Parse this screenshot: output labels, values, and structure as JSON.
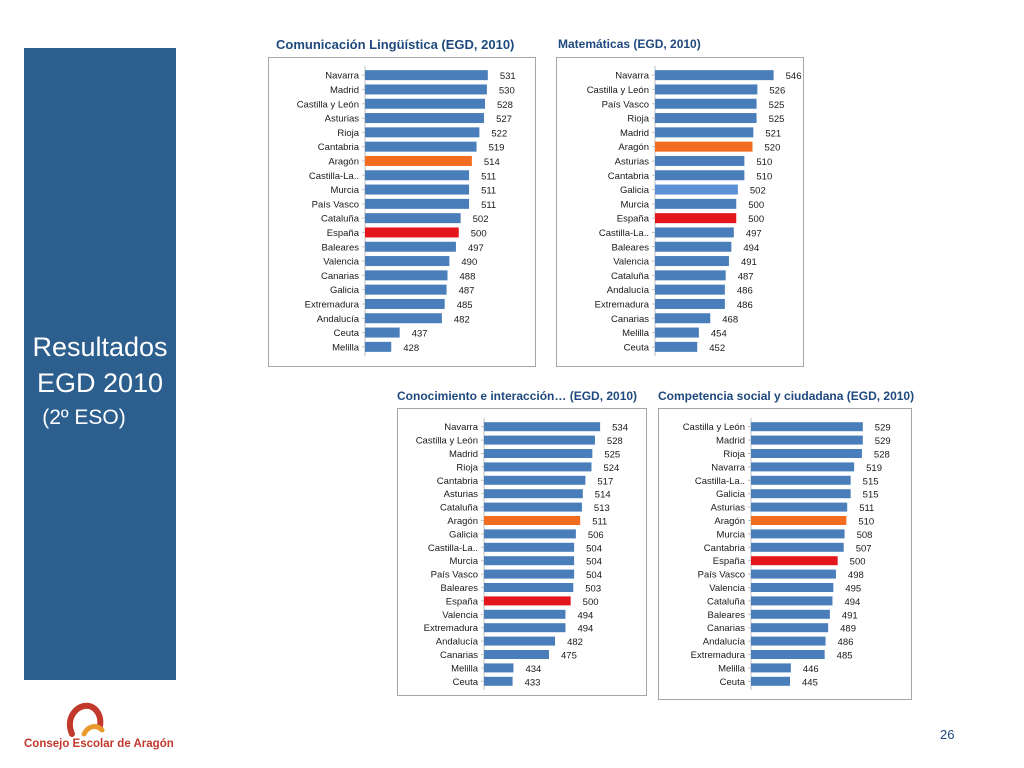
{
  "side": {
    "title_line1": "Resultados",
    "title_line2": "EGD 2010",
    "title_line3": "(2º ESO)"
  },
  "footer": {
    "logo_text": "Consejo Escolar de Aragón",
    "page_number": "26"
  },
  "colors": {
    "default_bar": "#4a7ebb",
    "aragon_bar": "#f26d1f",
    "espana_bar": "#e3161b",
    "galicia_bar": "#5b8fd6",
    "panel": "#2d5f8e",
    "title": "#1f497d"
  },
  "chart_data": [
    {
      "type": "bar",
      "orientation": "horizontal",
      "title": "Comunicación  Lingüística  (EGD, 2010)",
      "categories": [
        "Navarra",
        "Madrid",
        "Castilla y León",
        "Asturias",
        "Rioja",
        "Cantabria",
        "Aragón",
        "Castilla-La..",
        "Murcia",
        "País Vasco",
        "Cataluña",
        "España",
        "Baleares",
        "Valencia",
        "Canarias",
        "Galicia",
        "Extremadura",
        "Andalucía",
        "Ceuta",
        "Melilla"
      ],
      "values": [
        531,
        530,
        528,
        527,
        522,
        519,
        514,
        511,
        511,
        511,
        502,
        500,
        497,
        490,
        488,
        487,
        485,
        482,
        437,
        428
      ],
      "highlights": {
        "Aragón": "aragon",
        "España": "espana"
      },
      "xlim": [
        400,
        560
      ]
    },
    {
      "type": "bar",
      "orientation": "horizontal",
      "title": "Matemáticas  (EGD, 2010)",
      "categories": [
        "Navarra",
        "Castilla y León",
        "País Vasco",
        "Rioja",
        "Madrid",
        "Aragón",
        "Asturias",
        "Cantabria",
        "Galicia",
        "Murcia",
        "España",
        "Castilla-La..",
        "Baleares",
        "Valencia",
        "Cataluña",
        "Andalucía",
        "Extremadura",
        "Canarias",
        "Melilla",
        "Ceuta"
      ],
      "values": [
        546,
        526,
        525,
        525,
        521,
        520,
        510,
        510,
        502,
        500,
        500,
        497,
        494,
        491,
        487,
        486,
        486,
        468,
        454,
        452
      ],
      "highlights": {
        "Aragón": "aragon",
        "España": "espana",
        "Galicia": "galicia"
      },
      "xlim": [
        400,
        560
      ]
    },
    {
      "type": "bar",
      "orientation": "horizontal",
      "title": "Conocimiento e interacción… (EGD, 2010)",
      "categories": [
        "Navarra",
        "Castilla y León",
        "Madrid",
        "Rioja",
        "Cantabria",
        "Asturias",
        "Cataluña",
        "Aragón",
        "Galicia",
        "Castilla-La..",
        "Murcia",
        "País Vasco",
        "Baleares",
        "España",
        "Valencia",
        "Extremadura",
        "Andalucía",
        "Canarias",
        "Melilla",
        "Ceuta"
      ],
      "values": [
        534,
        528,
        525,
        524,
        517,
        514,
        513,
        511,
        506,
        504,
        504,
        504,
        503,
        500,
        494,
        494,
        482,
        475,
        434,
        433
      ],
      "highlights": {
        "Aragón": "aragon",
        "España": "espana"
      },
      "xlim": [
        400,
        550
      ]
    },
    {
      "type": "bar",
      "orientation": "horizontal",
      "title": "Competencia social y ciudadana (EGD, 2010)",
      "categories": [
        "Castilla y León",
        "Madrid",
        "Rioja",
        "Navarra",
        "Castilla-La..",
        "Galicia",
        "Asturias",
        "Aragón",
        "Murcia",
        "Cantabria",
        "España",
        "País Vasco",
        "Valencia",
        "Cataluña",
        "Baleares",
        "Canarias",
        "Andalucía",
        "Extremadura",
        "Melilla",
        "Ceuta"
      ],
      "values": [
        529,
        529,
        528,
        519,
        515,
        515,
        511,
        510,
        508,
        507,
        500,
        498,
        495,
        494,
        491,
        489,
        486,
        485,
        446,
        445
      ],
      "highlights": {
        "Aragón": "aragon",
        "España": "espana"
      },
      "xlim": [
        400,
        550
      ]
    }
  ]
}
